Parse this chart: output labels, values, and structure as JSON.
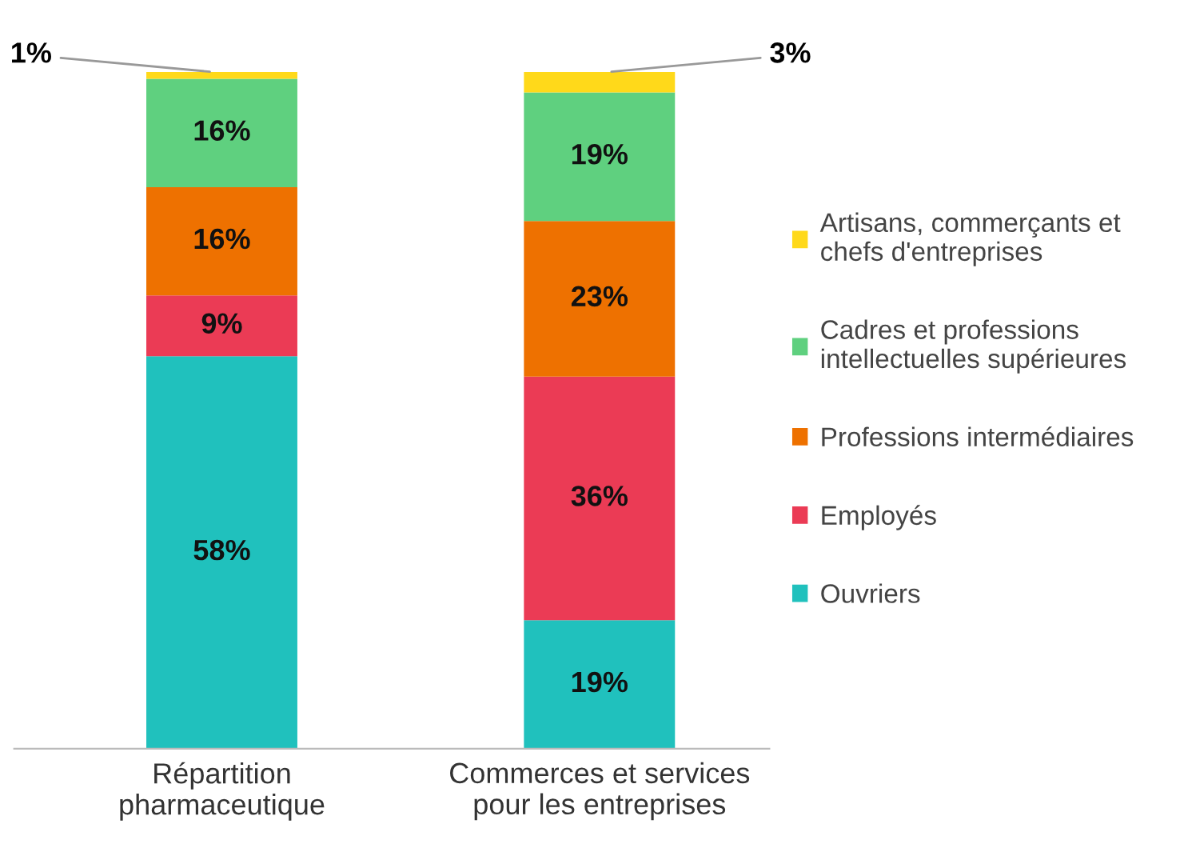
{
  "chart_data": {
    "type": "bar",
    "stacked": true,
    "legend": "right",
    "categories": [
      "Répartition pharmaceutique",
      "Commerces et services pour les entreprises"
    ],
    "series": [
      {
        "name": "Ouvriers",
        "color": "#20c1bd",
        "values": [
          58,
          19
        ],
        "value_labels": [
          "58%",
          "19%"
        ]
      },
      {
        "name": "Employés",
        "color": "#eb3b55",
        "values": [
          9,
          36
        ],
        "value_labels": [
          "9%",
          "36%"
        ]
      },
      {
        "name": "Professions intermédiaires",
        "color": "#ee7100",
        "values": [
          16,
          23
        ],
        "value_labels": [
          "16%",
          "23%"
        ]
      },
      {
        "name": "Cadres et professions intellectuelles supérieures",
        "color": "#5fd07f",
        "values": [
          16,
          19
        ],
        "value_labels": [
          "16%",
          "19%"
        ]
      },
      {
        "name": "Artisans, commerçants et chefs d'entreprises",
        "color": "#ffd91a",
        "values": [
          1,
          3
        ],
        "value_labels": [
          null,
          null
        ]
      }
    ],
    "annotations": [
      {
        "text": "1%",
        "x": "Répartition pharmaceutique",
        "y": 100
      },
      {
        "text": "3%",
        "x": "Commerces et services pour les entreprises",
        "y": 100
      }
    ]
  }
}
